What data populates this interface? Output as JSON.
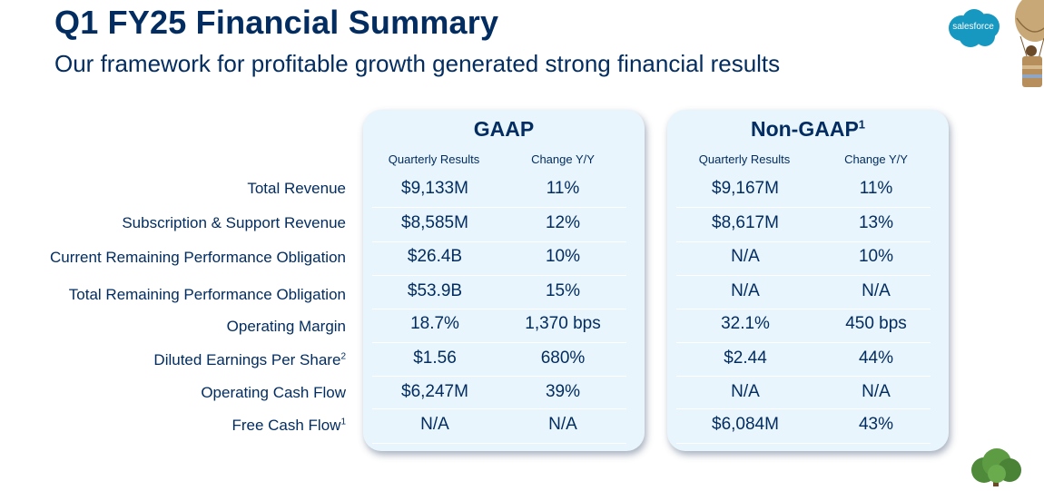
{
  "header": {
    "title": "Q1 FY25 Financial Summary",
    "subtitle": "Our framework for profitable growth generated strong financial results"
  },
  "brand": {
    "logo_text": "salesforce",
    "logo_color": "#1798c1",
    "text_color": "#032d60",
    "panel_color": "#e9f5fd"
  },
  "rows": [
    {
      "label": "Total Revenue",
      "sup": ""
    },
    {
      "label": "Subscription & Support Revenue",
      "sup": ""
    },
    {
      "label": "Current Remaining Performance Obligation",
      "sup": ""
    },
    {
      "label": "Total Remaining Performance Obligation",
      "sup": ""
    },
    {
      "label": "Operating Margin",
      "sup": ""
    },
    {
      "label": "Diluted Earnings Per Share",
      "sup": "2"
    },
    {
      "label": "Operating Cash Flow",
      "sup": ""
    },
    {
      "label": "Free Cash Flow",
      "sup": "1"
    }
  ],
  "gaap": {
    "title": "GAAP",
    "title_sup": "",
    "col1": "Quarterly Results",
    "col2": "Change Y/Y",
    "values": [
      [
        "$9,133M",
        "11%"
      ],
      [
        "$8,585M",
        "12%"
      ],
      [
        "$26.4B",
        "10%"
      ],
      [
        "$53.9B",
        "15%"
      ],
      [
        "18.7%",
        "1,370 bps"
      ],
      [
        "$1.56",
        "680%"
      ],
      [
        "$6,247M",
        "39%"
      ],
      [
        "N/A",
        "N/A"
      ]
    ]
  },
  "nongaap": {
    "title": "Non-GAAP",
    "title_sup": "1",
    "col1": "Quarterly Results",
    "col2": "Change Y/Y",
    "values": [
      [
        "$9,167M",
        "11%"
      ],
      [
        "$8,617M",
        "13%"
      ],
      [
        "N/A",
        "10%"
      ],
      [
        "N/A",
        "N/A"
      ],
      [
        "32.1%",
        "450 bps"
      ],
      [
        "$2.44",
        "44%"
      ],
      [
        "N/A",
        "N/A"
      ],
      [
        "$6,084M",
        "43%"
      ]
    ]
  }
}
